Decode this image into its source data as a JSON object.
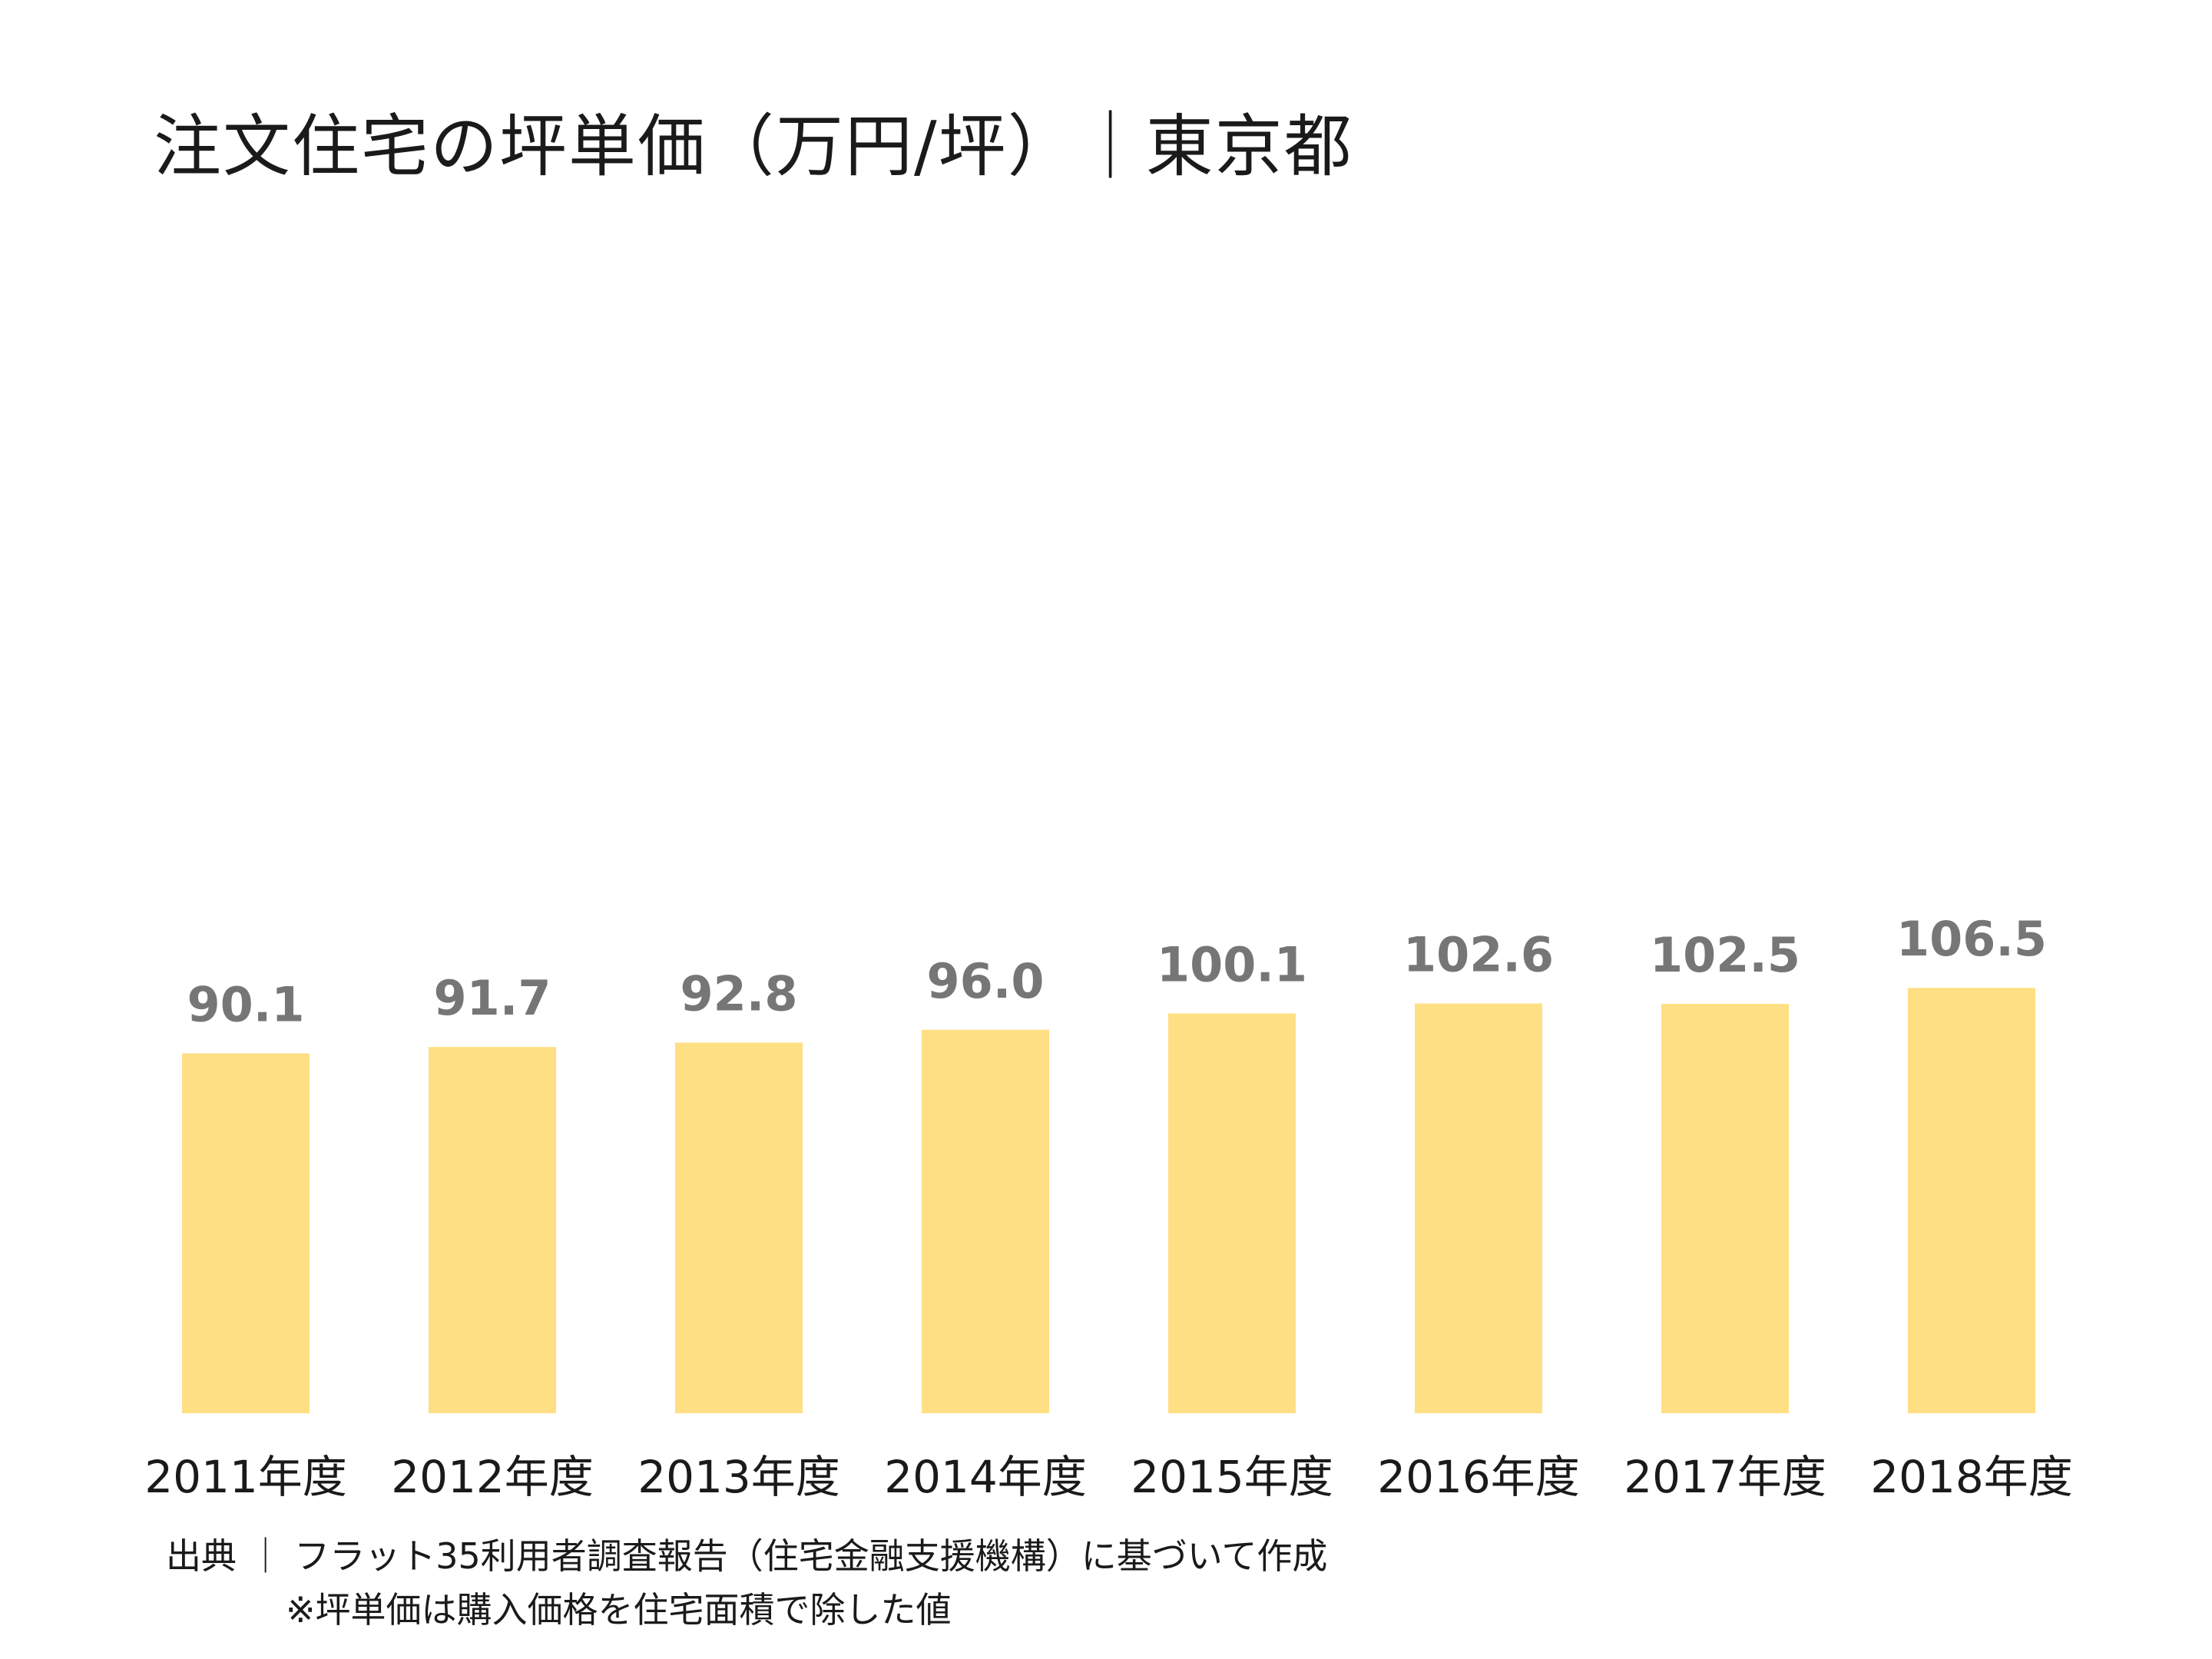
{
  "chart_data": {
    "type": "bar",
    "title": "注文住宅の坪単価（万円/坪）｜東京都",
    "categories": [
      "2011年度",
      "2012年度",
      "2013年度",
      "2014年度",
      "2015年度",
      "2016年度",
      "2017年度",
      "2018年度"
    ],
    "values": [
      90.1,
      91.7,
      92.8,
      96.0,
      100.1,
      102.6,
      102.5,
      106.5
    ],
    "value_labels": [
      "90.1",
      "91.7",
      "92.8",
      "96.0",
      "100.1",
      "102.6",
      "102.5",
      "106.5"
    ],
    "xlabel": "",
    "ylabel": "",
    "grid": false,
    "bar_color": "#ffdf84",
    "value_label_color": "#767676"
  },
  "source": {
    "line1": "出典 ｜ フラット35利用者調査報告（住宅金融支援機構）に基づいて作成",
    "line2": "※坪単価は購入価格を住宅面積で除した値"
  }
}
